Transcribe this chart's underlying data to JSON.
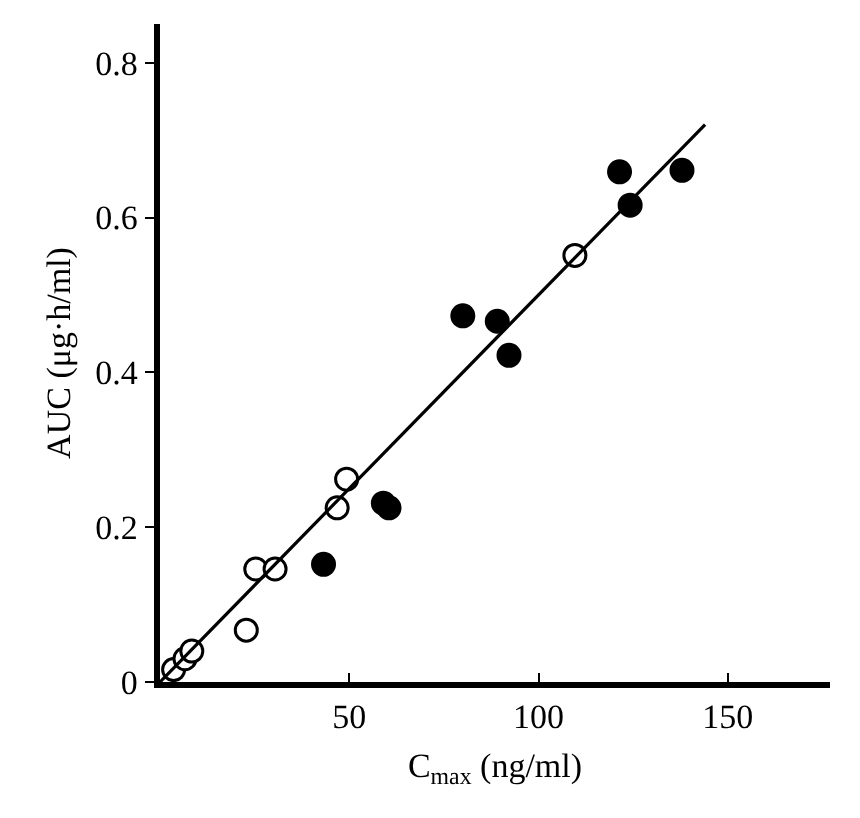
{
  "chart_data": {
    "type": "scatter",
    "xlabel": "C$_{max}$ (ng/ml)",
    "ylabel": "AUC (μg·h/ml)",
    "xlim": [
      0,
      177
    ],
    "ylim": [
      0,
      0.85
    ],
    "xticks": [
      50,
      100,
      150
    ],
    "yticks": [
      0,
      0.2,
      0.4,
      0.6,
      0.8
    ],
    "grid": false,
    "legend": false,
    "marker": "circle",
    "series": [
      {
        "color": "#ffffff",
        "x": [
          3.6,
          6.6,
          8.4,
          22.8,
          25.3,
          30.4,
          46.8,
          49.3,
          109.6
        ],
        "values": [
          0.016,
          0.03,
          0.04,
          0.067,
          0.146,
          0.146,
          0.225,
          0.262,
          0.551
        ]
      },
      {
        "color": "#000000",
        "x": [
          43.2,
          59,
          60.5,
          80,
          89.1,
          92.2,
          121.4,
          124.2,
          137.9
        ],
        "values": [
          0.152,
          0.231,
          0.225,
          0.473,
          0.466,
          0.422,
          0.659,
          0.616,
          0.661
        ]
      },
      {
        "type": "line",
        "marker": "none",
        "color": "#000000",
        "x": [
          0,
          144
        ],
        "values": [
          0,
          0.72
        ]
      }
    ]
  }
}
